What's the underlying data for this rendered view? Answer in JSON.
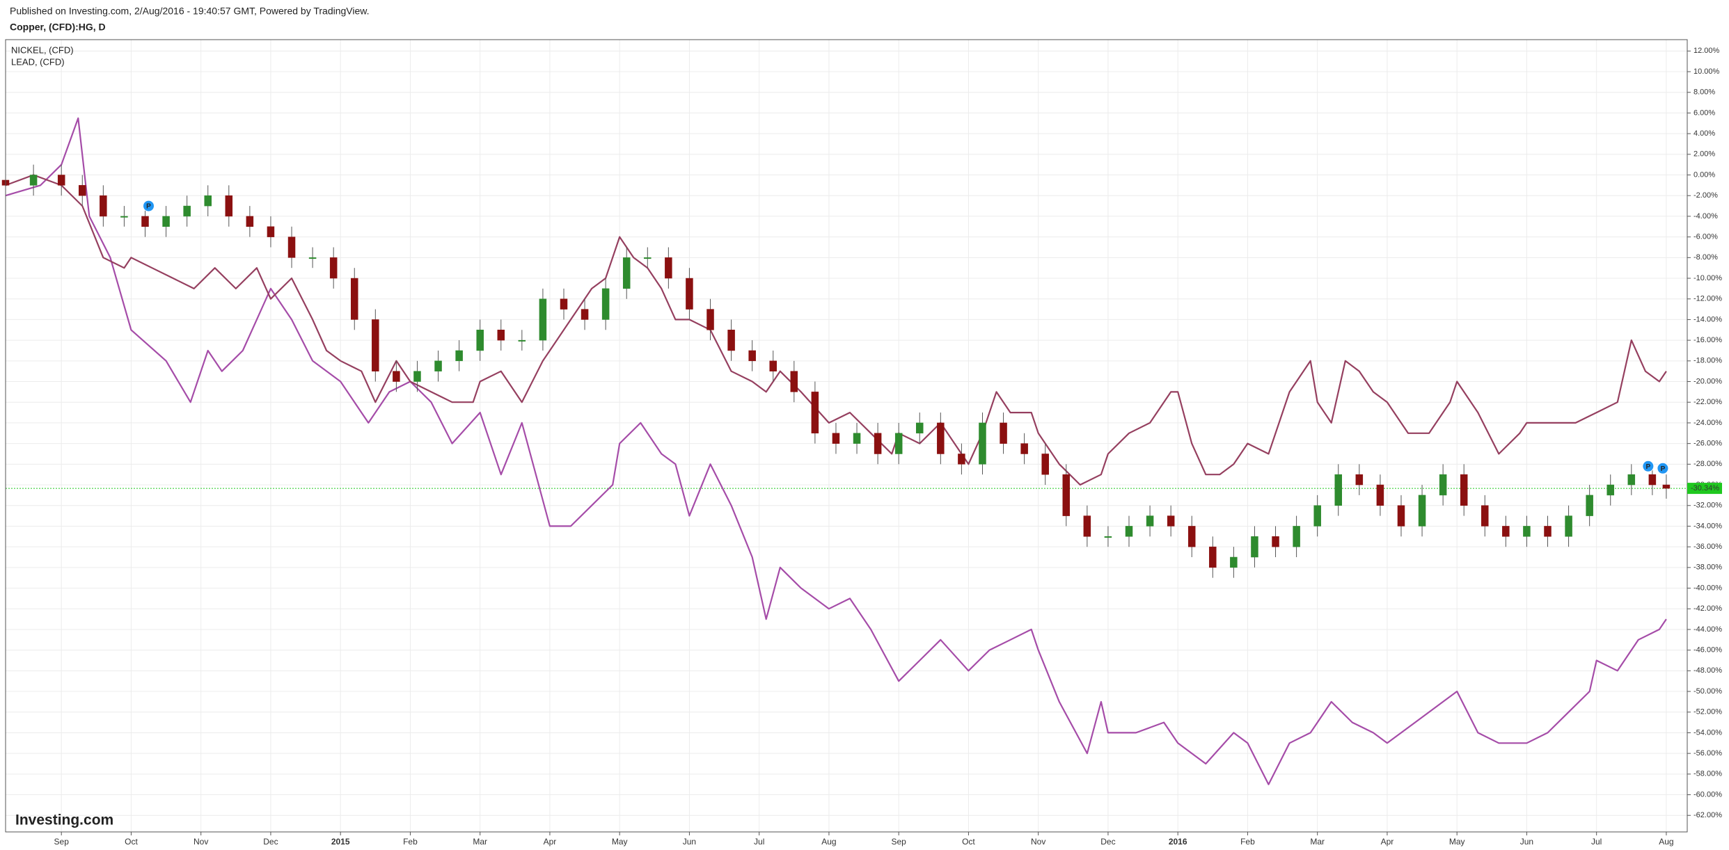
{
  "chart_data": {
    "type": "candlestick",
    "subtitle": "Published on Investing.com, 2/Aug/2016 - 19:40:57 GMT, Powered by TradingView.",
    "title": "Copper, (CFD):HG, D",
    "watermark": "Investing.com",
    "up_color": "#2e8b2e",
    "down_color": "#8b1010",
    "grid": true,
    "xlim": [
      0.2,
      24.3
    ],
    "ylim": [
      -63.6,
      13.1
    ],
    "xticks": [
      {
        "value": 1,
        "label": "Sep"
      },
      {
        "value": 2,
        "label": "Oct"
      },
      {
        "value": 3,
        "label": "Nov"
      },
      {
        "value": 4,
        "label": "Dec"
      },
      {
        "value": 5,
        "label": "2015"
      },
      {
        "value": 6,
        "label": "Feb"
      },
      {
        "value": 7,
        "label": "Mar"
      },
      {
        "value": 8,
        "label": "Apr"
      },
      {
        "value": 9,
        "label": "May"
      },
      {
        "value": 10,
        "label": "Jun"
      },
      {
        "value": 11,
        "label": "Jul"
      },
      {
        "value": 12,
        "label": "Aug"
      },
      {
        "value": 13,
        "label": "Sep"
      },
      {
        "value": 14,
        "label": "Oct"
      },
      {
        "value": 15,
        "label": "Nov"
      },
      {
        "value": 16,
        "label": "Dec"
      },
      {
        "value": 17,
        "label": "2016"
      },
      {
        "value": 18,
        "label": "Feb"
      },
      {
        "value": 19,
        "label": "Mar"
      },
      {
        "value": 20,
        "label": "Apr"
      },
      {
        "value": 21,
        "label": "May"
      },
      {
        "value": 22,
        "label": "Jun"
      },
      {
        "value": 23,
        "label": "Jul"
      },
      {
        "value": 24,
        "label": "Aug"
      }
    ],
    "yticks": [
      {
        "value": 12,
        "label": "12.00%"
      },
      {
        "value": 10,
        "label": "10.00%"
      },
      {
        "value": 8,
        "label": "8.00%"
      },
      {
        "value": 6,
        "label": "6.00%"
      },
      {
        "value": 4,
        "label": "4.00%"
      },
      {
        "value": 2,
        "label": "2.00%"
      },
      {
        "value": 0,
        "label": "0.00%"
      },
      {
        "value": -2,
        "label": "-2.00%"
      },
      {
        "value": -4,
        "label": "-4.00%"
      },
      {
        "value": -6,
        "label": "-6.00%"
      },
      {
        "value": -8,
        "label": "-8.00%"
      },
      {
        "value": -10,
        "label": "-10.00%"
      },
      {
        "value": -12,
        "label": "-12.00%"
      },
      {
        "value": -14,
        "label": "-14.00%"
      },
      {
        "value": -16,
        "label": "-16.00%"
      },
      {
        "value": -18,
        "label": "-18.00%"
      },
      {
        "value": -20,
        "label": "-20.00%"
      },
      {
        "value": -22,
        "label": "-22.00%"
      },
      {
        "value": -24,
        "label": "-24.00%"
      },
      {
        "value": -26,
        "label": "-26.00%"
      },
      {
        "value": -28,
        "label": "-28.00%"
      },
      {
        "value": -30,
        "label": "-30.00%"
      },
      {
        "value": -32,
        "label": "-32.00%"
      },
      {
        "value": -34,
        "label": "-34.00%"
      },
      {
        "value": -36,
        "label": "-36.00%"
      },
      {
        "value": -38,
        "label": "-38.00%"
      },
      {
        "value": -40,
        "label": "-40.00%"
      },
      {
        "value": -42,
        "label": "-42.00%"
      },
      {
        "value": -44,
        "label": "-44.00%"
      },
      {
        "value": -46,
        "label": "-46.00%"
      },
      {
        "value": -48,
        "label": "-48.00%"
      },
      {
        "value": -50,
        "label": "-50.00%"
      },
      {
        "value": -52,
        "label": "-52.00%"
      },
      {
        "value": -54,
        "label": "-54.00%"
      },
      {
        "value": -56,
        "label": "-56.00%"
      },
      {
        "value": -58,
        "label": "-58.00%"
      },
      {
        "value": -60,
        "label": "-60.00%"
      },
      {
        "value": -62,
        "label": "-62.00%"
      }
    ],
    "last_value": {
      "value": -30.34,
      "label": "-30.34%"
    },
    "last_color": "#1fc81f",
    "events": [
      {
        "x": 2.25,
        "y": -3,
        "label": "P"
      },
      {
        "x": 23.74,
        "y": -28.2,
        "label": "P"
      },
      {
        "x": 23.95,
        "y": -28.4,
        "label": "P"
      }
    ],
    "ohlc": {
      "x": [
        0.2,
        0.6,
        1.0,
        1.3,
        1.6,
        1.9,
        2.2,
        2.5,
        2.8,
        3.1,
        3.4,
        3.7,
        4.0,
        4.3,
        4.6,
        4.9,
        5.2,
        5.5,
        5.8,
        6.1,
        6.4,
        6.7,
        7.0,
        7.3,
        7.6,
        7.9,
        8.2,
        8.5,
        8.8,
        9.1,
        9.4,
        9.7,
        10.0,
        10.3,
        10.6,
        10.9,
        11.2,
        11.5,
        11.8,
        12.1,
        12.4,
        12.7,
        13.0,
        13.3,
        13.6,
        13.9,
        14.2,
        14.5,
        14.8,
        15.1,
        15.4,
        15.7,
        16.0,
        16.3,
        16.6,
        16.9,
        17.2,
        17.5,
        17.8,
        18.1,
        18.4,
        18.7,
        19.0,
        19.3,
        19.6,
        19.9,
        20.2,
        20.5,
        20.8,
        21.1,
        21.4,
        21.7,
        22.0,
        22.3,
        22.6,
        22.9,
        23.2,
        23.5,
        23.8,
        24.0
      ],
      "open": [
        -0.5,
        -1,
        0,
        -1,
        -2,
        -4,
        -4,
        -5,
        -4,
        -3,
        -2,
        -4,
        -5,
        -6,
        -8,
        -8,
        -10,
        -14,
        -19,
        -20,
        -19,
        -18,
        -17,
        -15,
        -16,
        -16,
        -12,
        -13,
        -14,
        -11,
        -8,
        -8,
        -10,
        -13,
        -15,
        -17,
        -18,
        -19,
        -21,
        -25,
        -26,
        -25,
        -27,
        -25,
        -24,
        -27,
        -28,
        -24,
        -26,
        -27,
        -29,
        -33,
        -35,
        -35,
        -34,
        -33,
        -34,
        -36,
        -38,
        -37,
        -35,
        -36,
        -34,
        -32,
        -29,
        -30,
        -32,
        -34,
        -31,
        -29,
        -32,
        -34,
        -35,
        -34,
        -35,
        -33,
        -31,
        -30,
        -29,
        -30
      ],
      "high": [
        0.5,
        1,
        1,
        0,
        -1,
        -3,
        -3,
        -3,
        -2,
        -1,
        -1,
        -3,
        -4,
        -5,
        -7,
        -7,
        -9,
        -13,
        -18,
        -18,
        -17,
        -16,
        -14,
        -14,
        -15,
        -11,
        -11,
        -12,
        -10,
        -7,
        -7,
        -7,
        -9,
        -12,
        -14,
        -16,
        -17,
        -18,
        -20,
        -24,
        -24,
        -24,
        -24,
        -23,
        -23,
        -26,
        -23,
        -23,
        -25,
        -26,
        -28,
        -32,
        -34,
        -33,
        -32,
        -32,
        -33,
        -35,
        -36,
        -34,
        -34,
        -33,
        -31,
        -28,
        -28,
        -29,
        -31,
        -30,
        -28,
        -28,
        -31,
        -33,
        -33,
        -33,
        -32,
        -30,
        -29,
        -28,
        -28,
        -29
      ],
      "low": [
        -2,
        -2,
        -2,
        -3,
        -5,
        -5,
        -6,
        -6,
        -5,
        -4,
        -5,
        -6,
        -7,
        -9,
        -9,
        -11,
        -15,
        -20,
        -21,
        -21,
        -20,
        -19,
        -18,
        -17,
        -17,
        -17,
        -14,
        -15,
        -15,
        -12,
        -9,
        -11,
        -14,
        -16,
        -18,
        -19,
        -20,
        -22,
        -26,
        -27,
        -27,
        -28,
        -28,
        -26,
        -28,
        -29,
        -29,
        -27,
        -28,
        -30,
        -34,
        -36,
        -36,
        -36,
        -35,
        -35,
        -37,
        -39,
        -39,
        -38,
        -37,
        -37,
        -35,
        -33,
        -31,
        -33,
        -35,
        -35,
        -32,
        -33,
        -35,
        -36,
        -36,
        -36,
        -36,
        -34,
        -32,
        -31,
        -31,
        -31.34
      ],
      "close": [
        -1,
        0,
        -1,
        -2,
        -4,
        -4,
        -5,
        -4,
        -3,
        -2,
        -4,
        -5,
        -6,
        -8,
        -8,
        -10,
        -14,
        -19,
        -20,
        -19,
        -18,
        -17,
        -15,
        -16,
        -16,
        -12,
        -13,
        -14,
        -11,
        -8,
        -8,
        -10,
        -13,
        -15,
        -17,
        -18,
        -19,
        -21,
        -25,
        -26,
        -25,
        -27,
        -25,
        -24,
        -27,
        -28,
        -24,
        -26,
        -27,
        -29,
        -33,
        -35,
        -35,
        -34,
        -33,
        -34,
        -36,
        -38,
        -37,
        -35,
        -36,
        -34,
        -32,
        -29,
        -30,
        -32,
        -34,
        -31,
        -29,
        -32,
        -34,
        -35,
        -34,
        -35,
        -33,
        -31,
        -30,
        -29,
        -30,
        -30.34
      ]
    },
    "series": [
      {
        "name": "NICKEL,  (CFD)",
        "type": "line",
        "color": "#a54ca8",
        "x": [
          0.2,
          0.7,
          1.0,
          1.24,
          1.4,
          1.7,
          2.0,
          2.5,
          2.85,
          3.1,
          3.3,
          3.6,
          3.8,
          4.0,
          4.3,
          4.6,
          5.0,
          5.4,
          5.7,
          6.0,
          6.3,
          6.6,
          7.0,
          7.3,
          7.6,
          8.0,
          8.3,
          8.6,
          8.9,
          9.0,
          9.3,
          9.6,
          9.8,
          10.0,
          10.3,
          10.6,
          10.9,
          11.1,
          11.3,
          11.6,
          12.0,
          12.3,
          12.6,
          13.0,
          13.3,
          13.6,
          14.0,
          14.3,
          14.6,
          14.9,
          15.0,
          15.3,
          15.7,
          15.9,
          16.0,
          16.4,
          16.8,
          17.0,
          17.4,
          17.8,
          18.0,
          18.3,
          18.6,
          18.9,
          19.0,
          19.2,
          19.5,
          19.8,
          20.0,
          20.4,
          20.8,
          21.0,
          21.3,
          21.6,
          22.0,
          22.3,
          22.6,
          22.9,
          23.0,
          23.3,
          23.6,
          23.9,
          24.0
        ],
        "values": [
          -2,
          -1,
          1,
          5.5,
          -4,
          -8,
          -15,
          -18,
          -22,
          -17,
          -19,
          -17,
          -14,
          -11,
          -14,
          -18,
          -20,
          -24,
          -21,
          -20,
          -22,
          -26,
          -23,
          -29,
          -24,
          -34,
          -34,
          -32,
          -30,
          -26,
          -24,
          -27,
          -28,
          -33,
          -28,
          -32,
          -37,
          -43,
          -38,
          -40,
          -42,
          -41,
          -44,
          -49,
          -47,
          -45,
          -48,
          -46,
          -45,
          -44,
          -46,
          -51,
          -56,
          -51,
          -54,
          -54,
          -53,
          -55,
          -57,
          -54,
          -55,
          -59,
          -55,
          -54,
          -53,
          -51,
          -53,
          -54,
          -55,
          -53,
          -51,
          -50,
          -54,
          -55,
          -55,
          -54,
          -52,
          -50,
          -47,
          -48,
          -45,
          -44,
          -43
        ]
      },
      {
        "name": "LEAD,  (CFD)",
        "type": "line",
        "color": "#953f5f",
        "x": [
          0.2,
          0.6,
          1.0,
          1.3,
          1.6,
          1.9,
          2.0,
          2.3,
          2.6,
          2.9,
          3.2,
          3.5,
          3.8,
          4.0,
          4.3,
          4.6,
          4.8,
          5.0,
          5.3,
          5.5,
          5.8,
          6.0,
          6.3,
          6.6,
          6.9,
          7.0,
          7.3,
          7.6,
          7.9,
          8.0,
          8.3,
          8.6,
          8.8,
          9.0,
          9.2,
          9.4,
          9.6,
          9.8,
          10.0,
          10.3,
          10.6,
          10.9,
          11.1,
          11.3,
          11.6,
          12.0,
          12.3,
          12.6,
          12.9,
          13.0,
          13.3,
          13.6,
          13.9,
          14.0,
          14.2,
          14.4,
          14.6,
          14.9,
          15.0,
          15.3,
          15.6,
          15.9,
          16.0,
          16.3,
          16.6,
          16.9,
          17.0,
          17.2,
          17.4,
          17.6,
          17.8,
          18.0,
          18.3,
          18.6,
          18.9,
          19.0,
          19.2,
          19.4,
          19.6,
          19.8,
          20.0,
          20.3,
          20.6,
          20.9,
          21.0,
          21.3,
          21.6,
          21.9,
          22.0,
          22.4,
          22.7,
          23.0,
          23.3,
          23.5,
          23.7,
          23.9,
          24.0
        ],
        "values": [
          -1,
          0,
          -1,
          -3,
          -8,
          -9,
          -8,
          -9,
          -10,
          -11,
          -9,
          -11,
          -9,
          -12,
          -10,
          -14,
          -17,
          -18,
          -19,
          -22,
          -18,
          -20,
          -21,
          -22,
          -22,
          -20,
          -19,
          -22,
          -18,
          -17,
          -14,
          -11,
          -10,
          -6,
          -8,
          -9,
          -11,
          -14,
          -14,
          -15,
          -19,
          -20,
          -21,
          -19,
          -21,
          -24,
          -23,
          -25,
          -27,
          -25,
          -26,
          -24,
          -27,
          -28,
          -25,
          -21,
          -23,
          -23,
          -25,
          -28,
          -30,
          -29,
          -27,
          -25,
          -24,
          -21,
          -21,
          -26,
          -29,
          -29,
          -28,
          -26,
          -27,
          -21,
          -18,
          -22,
          -24,
          -18,
          -19,
          -21,
          -22,
          -25,
          -25,
          -22,
          -20,
          -23,
          -27,
          -25,
          -24,
          -24,
          -24,
          -23,
          -22,
          -16,
          -19,
          -20,
          -19
        ]
      }
    ]
  }
}
